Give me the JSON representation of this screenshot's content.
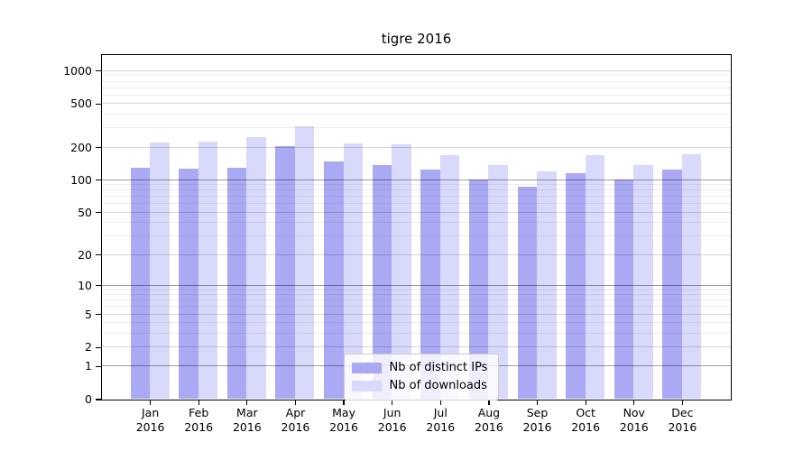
{
  "chart_data": {
    "type": "bar",
    "title": "tigre 2016",
    "scale": "log1p",
    "grid": "horizontal",
    "legend_position": "lower center",
    "categories": [
      "Jan",
      "Feb",
      "Mar",
      "Apr",
      "May",
      "Jun",
      "Jul",
      "Aug",
      "Sep",
      "Oct",
      "Nov",
      "Dec"
    ],
    "year": "2016",
    "series": [
      {
        "name": "Nb of distinct IPs",
        "color": "#a9a9f4",
        "values": [
          129,
          127,
          128,
          202,
          147,
          137,
          124,
          100,
          87,
          114,
          100,
          125
        ]
      },
      {
        "name": "Nb of downloads",
        "color": "#d9d9fb",
        "values": [
          218,
          226,
          247,
          310,
          215,
          212,
          168,
          137,
          120,
          169,
          136,
          172
        ]
      }
    ],
    "y_ticks": [
      0,
      1,
      2,
      5,
      10,
      20,
      50,
      100,
      200,
      500,
      1000
    ],
    "y_ticks_dark_gridline": [
      1,
      10,
      100
    ],
    "y_minor_gridlines": [
      3,
      4,
      6,
      7,
      8,
      9,
      30,
      40,
      60,
      70,
      80,
      90,
      300,
      400,
      600,
      700,
      800,
      900
    ],
    "ylim": [
      0,
      1390
    ],
    "axis_color": "#000000",
    "plot_background": "#ffffff"
  }
}
